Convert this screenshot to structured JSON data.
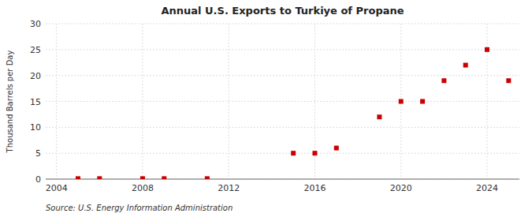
{
  "chart_data": {
    "type": "scatter",
    "title": "Annual U.S. Exports to Turkiye of Propane",
    "ylabel": "Thousand Barrels per Day",
    "source": "Source: U.S. Energy Information Administration",
    "x": [
      2005,
      2006,
      2008,
      2009,
      2011,
      2015,
      2016,
      2017,
      2019,
      2020,
      2021,
      2022,
      2023,
      2024,
      2025
    ],
    "values": [
      0.1,
      0.1,
      0.1,
      0.1,
      0.1,
      5.0,
      5.0,
      6.0,
      12.0,
      15.0,
      15.0,
      19.0,
      22.0,
      25.0,
      19.0
    ],
    "color": "#cc0000",
    "marker": "square",
    "xlim": [
      2003.5,
      2025.5
    ],
    "ylim": [
      0,
      30
    ],
    "xticks": [
      2004,
      2008,
      2012,
      2016,
      2020,
      2024
    ],
    "yticks": [
      0,
      5,
      10,
      15,
      20,
      25,
      30
    ],
    "grid": true
  }
}
